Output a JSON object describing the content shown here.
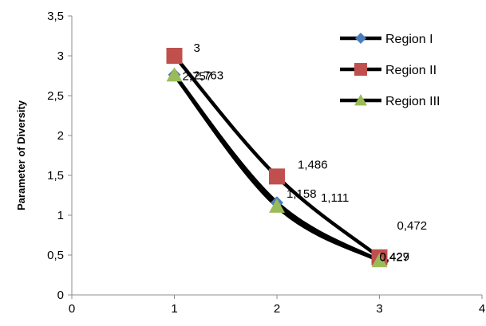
{
  "chart_data": {
    "type": "scatter",
    "title": "",
    "xlabel": "",
    "ylabel": "Parameter of Diversity",
    "xlim": [
      0,
      4
    ],
    "ylim": [
      0,
      3.5
    ],
    "x_ticks": [
      "0",
      "1",
      "2",
      "3",
      "4"
    ],
    "y_ticks": [
      "0",
      "0,5",
      "1",
      "1,5",
      "2",
      "2,5",
      "3",
      "3,5"
    ],
    "grid": false,
    "legend_position": "top-right",
    "series": [
      {
        "name": "Region I",
        "marker": "diamond",
        "marker_color": "#4A7EBB",
        "line_color": "#000000",
        "x": [
          1,
          2,
          3
        ],
        "values": [
          2.763,
          1.158,
          0.429
        ],
        "labels": [
          "2,763",
          "1,158",
          "0,429"
        ]
      },
      {
        "name": "Region II",
        "marker": "square",
        "marker_color": "#C0504D",
        "line_color": "#000000",
        "x": [
          1,
          2,
          3
        ],
        "values": [
          3,
          1.486,
          0.472
        ],
        "labels": [
          "3",
          "1,486",
          "0,472"
        ]
      },
      {
        "name": "Region III",
        "marker": "triangle",
        "marker_color": "#9BBB59",
        "line_color": "#000000",
        "x": [
          1,
          2,
          3
        ],
        "values": [
          2.757,
          1.111,
          0.427
        ],
        "labels": [
          "2,757",
          "1,111",
          "0,427"
        ]
      }
    ]
  }
}
